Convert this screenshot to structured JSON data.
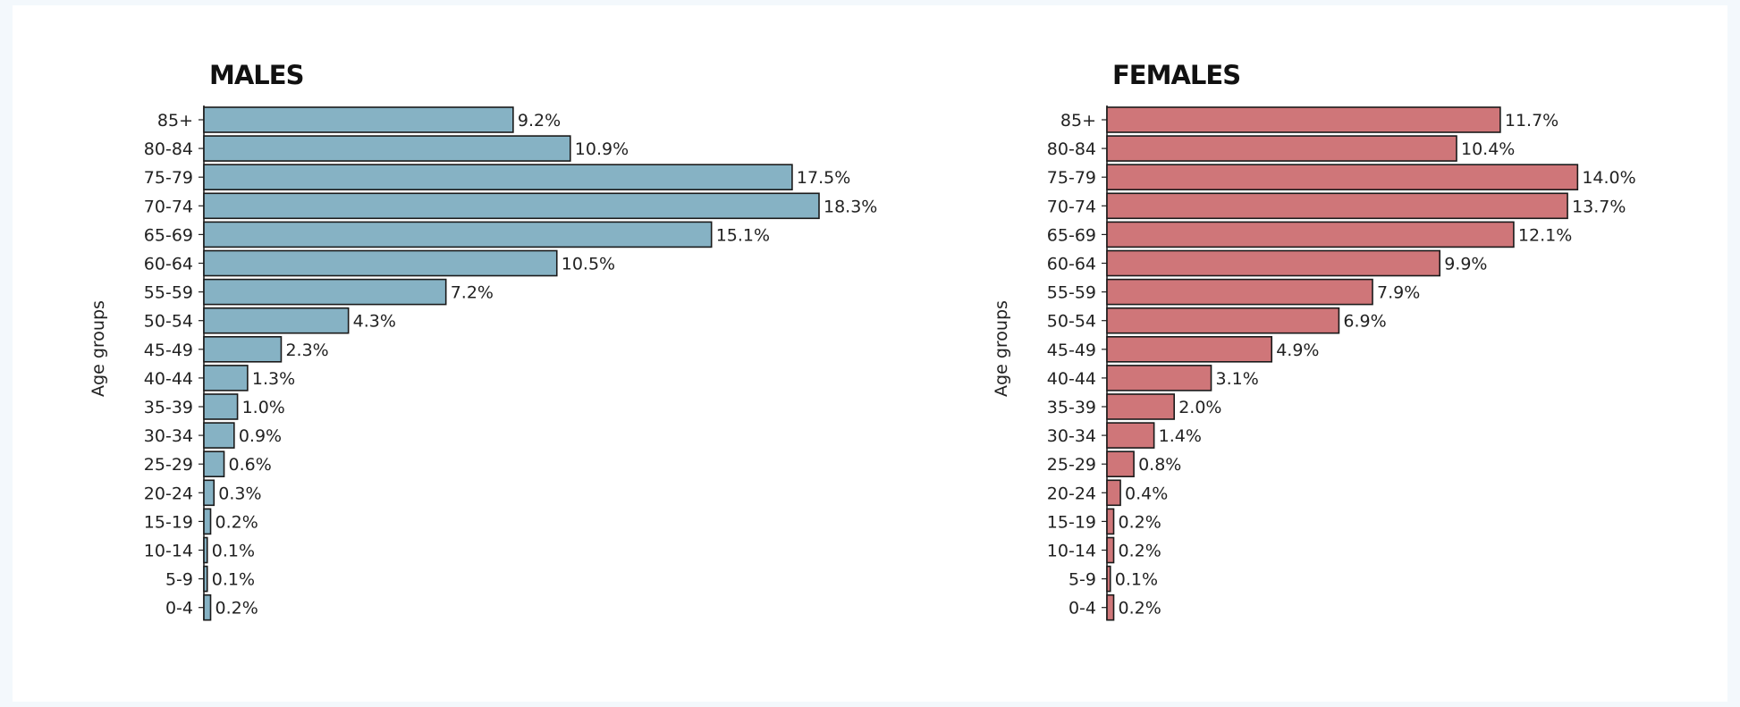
{
  "chart_data": [
    {
      "type": "bar",
      "orientation": "horizontal",
      "title": "MALES",
      "ylabel": "Age groups",
      "xlabel": "",
      "categories": [
        "85+",
        "80-84",
        "75-79",
        "70-74",
        "65-69",
        "60-64",
        "55-59",
        "50-54",
        "45-49",
        "40-44",
        "35-39",
        "30-34",
        "25-29",
        "20-24",
        "15-19",
        "10-14",
        "5-9",
        "0-4"
      ],
      "values": [
        9.2,
        10.9,
        17.5,
        18.3,
        15.1,
        10.5,
        7.2,
        4.3,
        2.3,
        1.3,
        1.0,
        0.9,
        0.6,
        0.3,
        0.2,
        0.1,
        0.1,
        0.2
      ],
      "labels": [
        "9.2%",
        "10.9%",
        "17.5%",
        "18.3%",
        "15.1%",
        "10.5%",
        "7.2%",
        "4.3%",
        "2.3%",
        "1.3%",
        "1.0%",
        "0.9%",
        "0.6%",
        "0.3%",
        "0.2%",
        "0.1%",
        "0.1%",
        "0.2%"
      ],
      "color": "#86b2c4",
      "grid": false,
      "legend": "none"
    },
    {
      "type": "bar",
      "orientation": "horizontal",
      "title": "FEMALES",
      "ylabel": "Age groups",
      "xlabel": "",
      "categories": [
        "85+",
        "80-84",
        "75-79",
        "70-74",
        "65-69",
        "60-64",
        "55-59",
        "50-54",
        "45-49",
        "40-44",
        "35-39",
        "30-34",
        "25-29",
        "20-24",
        "15-19",
        "10-14",
        "5-9",
        "0-4"
      ],
      "values": [
        11.7,
        10.4,
        14.0,
        13.7,
        12.1,
        9.9,
        7.9,
        6.9,
        4.9,
        3.1,
        2.0,
        1.4,
        0.8,
        0.4,
        0.2,
        0.2,
        0.1,
        0.2
      ],
      "labels": [
        "11.7%",
        "10.4%",
        "14.0%",
        "13.7%",
        "12.1%",
        "9.9%",
        "7.9%",
        "6.9%",
        "4.9%",
        "3.1%",
        "2.0%",
        "1.4%",
        "0.8%",
        "0.4%",
        "0.2%",
        "0.2%",
        "0.1%",
        "0.2%"
      ],
      "color": "#cf7679",
      "grid": false,
      "legend": "none"
    }
  ]
}
